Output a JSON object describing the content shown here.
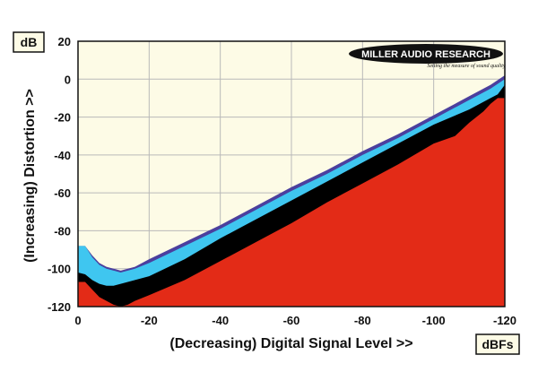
{
  "chart_data": {
    "type": "area",
    "xlabel": "(Decreasing) Digital Signal Level >>",
    "ylabel": "(Increasing) Distortion >>",
    "x_unit": "dBFs",
    "y_unit": "dB",
    "xlim": [
      0,
      -120
    ],
    "ylim": [
      -120,
      20
    ],
    "x_ticks": [
      0,
      -20,
      -40,
      -60,
      -80,
      -100,
      -120
    ],
    "y_ticks": [
      20,
      0,
      -20,
      -40,
      -60,
      -80,
      -100,
      -120
    ],
    "grid": true,
    "colors": {
      "background": "#fdfbe6",
      "red": "#e32b17",
      "black": "#000000",
      "cyan": "#3fc6f0",
      "purple": "#4b3f9e",
      "grid": "#b9b9b9"
    },
    "series": [
      {
        "color_key": "purple",
        "x": [
          0,
          -2,
          -4,
          -6,
          -8,
          -10,
          -12,
          -14,
          -16,
          -20,
          -30,
          -40,
          -50,
          -60,
          -70,
          -80,
          -90,
          -100,
          -110,
          -116,
          -120
        ],
        "y": [
          -88,
          -88,
          -93,
          -97,
          -99,
          -100,
          -101,
          -100,
          -99,
          -95,
          -86,
          -77,
          -67,
          -57,
          -48,
          -38,
          -29,
          -19,
          -9,
          -3,
          2
        ]
      },
      {
        "color_key": "cyan",
        "x": [
          0,
          -2,
          -4,
          -6,
          -8,
          -10,
          -12,
          -14,
          -16,
          -20,
          -30,
          -40,
          -50,
          -60,
          -70,
          -80,
          -90,
          -100,
          -110,
          -116,
          -120
        ],
        "y": [
          -88,
          -88,
          -94,
          -98,
          -100,
          -101,
          -102,
          -101,
          -100,
          -97,
          -88,
          -79,
          -69,
          -59,
          -50,
          -40,
          -31,
          -21,
          -11,
          -5,
          0
        ]
      },
      {
        "color_key": "black",
        "x": [
          0,
          -2,
          -4,
          -6,
          -8,
          -10,
          -12,
          -14,
          -16,
          -20,
          -30,
          -40,
          -50,
          -60,
          -70,
          -80,
          -90,
          -100,
          -110,
          -116,
          -118,
          -120
        ],
        "y": [
          -102,
          -103,
          -106,
          -108,
          -109,
          -109,
          -108,
          -107,
          -106,
          -104,
          -95,
          -84,
          -74,
          -64,
          -54,
          -44,
          -34,
          -24,
          -16,
          -10,
          -8,
          -3
        ]
      },
      {
        "color_key": "red",
        "x": [
          0,
          -2,
          -4,
          -6,
          -8,
          -10,
          -12,
          -14,
          -16,
          -20,
          -30,
          -40,
          -50,
          -60,
          -70,
          -80,
          -90,
          -100,
          -106,
          -110,
          -114,
          -116,
          -118,
          -120
        ],
        "y": [
          -107,
          -107,
          -111,
          -115,
          -117,
          -119,
          -120,
          -119,
          -117,
          -114,
          -106,
          -96,
          -86,
          -76,
          -65,
          -55,
          -45,
          -34,
          -30,
          -23,
          -17,
          -13,
          -10,
          -10
        ]
      }
    ]
  },
  "logo": {
    "name": "MILLER AUDIO RESEARCH",
    "tagline": "Setting the measure of sound quality"
  }
}
